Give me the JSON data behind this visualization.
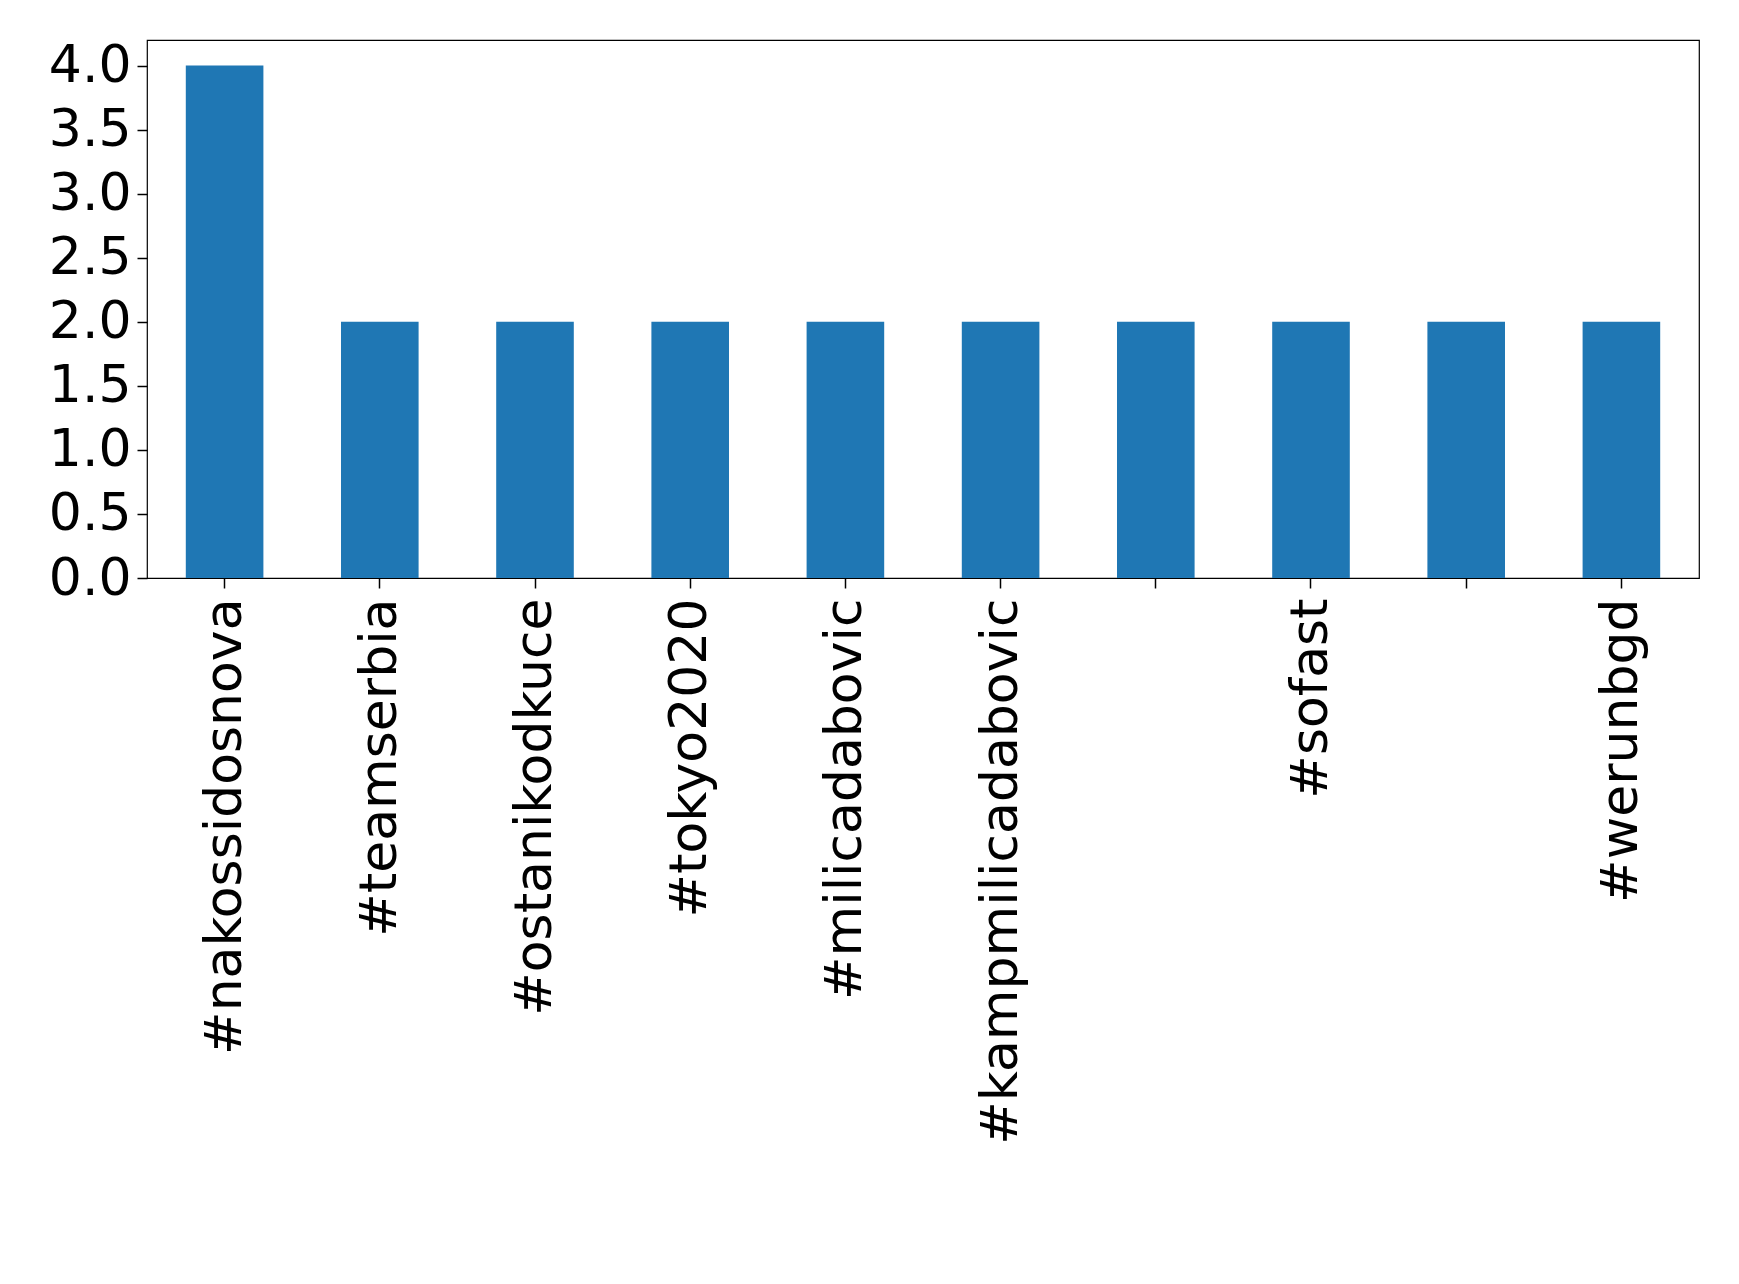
{
  "chart_data": {
    "type": "bar",
    "categories": [
      "#nakossidosnova",
      "#teamserbia",
      "#ostanikodkuce",
      "#tokyo2020",
      "#milicadabovic",
      "#kampmilicadabovic",
      null,
      "#sofast",
      null,
      "#werunbgd"
    ],
    "values": [
      4,
      2,
      2,
      2,
      2,
      2,
      2,
      2,
      2,
      2
    ],
    "color": "#1f77b4",
    "ylim": [
      0,
      4.2
    ],
    "yticks": [
      {
        "value": 0,
        "label": "0.0"
      },
      0.5,
      {
        "value": 1,
        "label": "1.0"
      },
      1.5,
      {
        "value": 2,
        "label": "2.0"
      },
      2.5,
      {
        "value": 3,
        "label": "3.0"
      },
      3.5,
      {
        "value": 4,
        "label": "4.0"
      }
    ],
    "grid": false
  }
}
